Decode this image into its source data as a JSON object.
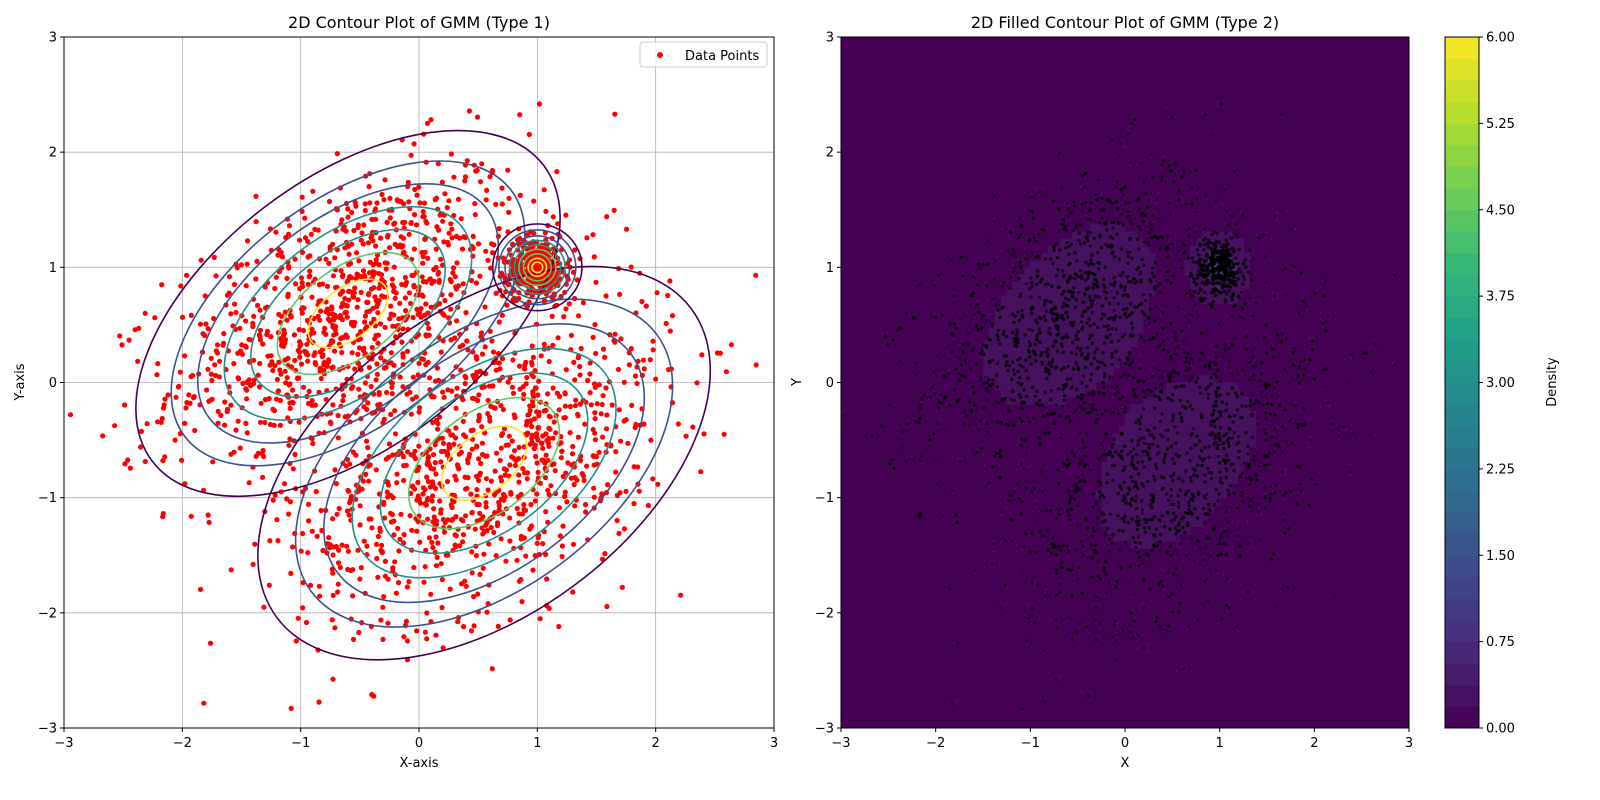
{
  "chart_data": [
    {
      "type": "scatter",
      "title": "2D Contour Plot of GMM (Type 1)",
      "xlabel": "X-axis",
      "ylabel": "Y-axis",
      "xlim": [
        -3,
        3
      ],
      "ylim": [
        -3,
        3
      ],
      "xticks": [
        -3,
        -2,
        -1,
        0,
        1,
        2,
        3
      ],
      "yticks": [
        -3,
        -2,
        -1,
        0,
        1,
        2,
        3
      ],
      "grid": true,
      "legend": {
        "position": "top-right",
        "entries": [
          "Data Points"
        ]
      },
      "point_color": "#ff0000",
      "contour_colors": [
        "#440154",
        "#3b528b",
        "#21908d",
        "#5dc963",
        "#fde725"
      ],
      "components": [
        {
          "mean": [
            -0.6,
            0.6
          ],
          "sx": 0.75,
          "sy": 0.65,
          "rho": 0.5,
          "n": 1000
        },
        {
          "mean": [
            0.55,
            -0.7
          ],
          "sx": 0.8,
          "sy": 0.7,
          "rho": 0.45,
          "n": 1000
        },
        {
          "mean": [
            1.0,
            1.0
          ],
          "sx": 0.13,
          "sy": 0.13,
          "rho": 0.0,
          "n": 350
        }
      ],
      "series": [
        {
          "name": "Data Points"
        }
      ]
    },
    {
      "type": "heatmap",
      "title": "2D Filled Contour Plot of GMM (Type 2)",
      "xlabel": "X",
      "ylabel": "Y",
      "xlim": [
        -3,
        3
      ],
      "ylim": [
        -3,
        3
      ],
      "xticks": [
        -3,
        -2,
        -1,
        0,
        1,
        2,
        3
      ],
      "yticks": [
        -3,
        -2,
        -1,
        0,
        1,
        2,
        3
      ],
      "grid": false,
      "point_color": "#000000",
      "colorbar": {
        "label": "Density",
        "range": [
          0,
          6
        ],
        "ticks": [
          "0.00",
          "0.75",
          "1.50",
          "2.25",
          "3.00",
          "3.75",
          "4.50",
          "5.25",
          "6.00"
        ],
        "colormap": [
          "#440154",
          "#482878",
          "#3e4989",
          "#31688e",
          "#26828e",
          "#1f9e89",
          "#35b779",
          "#6ece58",
          "#b5de2b",
          "#fde725"
        ]
      }
    }
  ]
}
